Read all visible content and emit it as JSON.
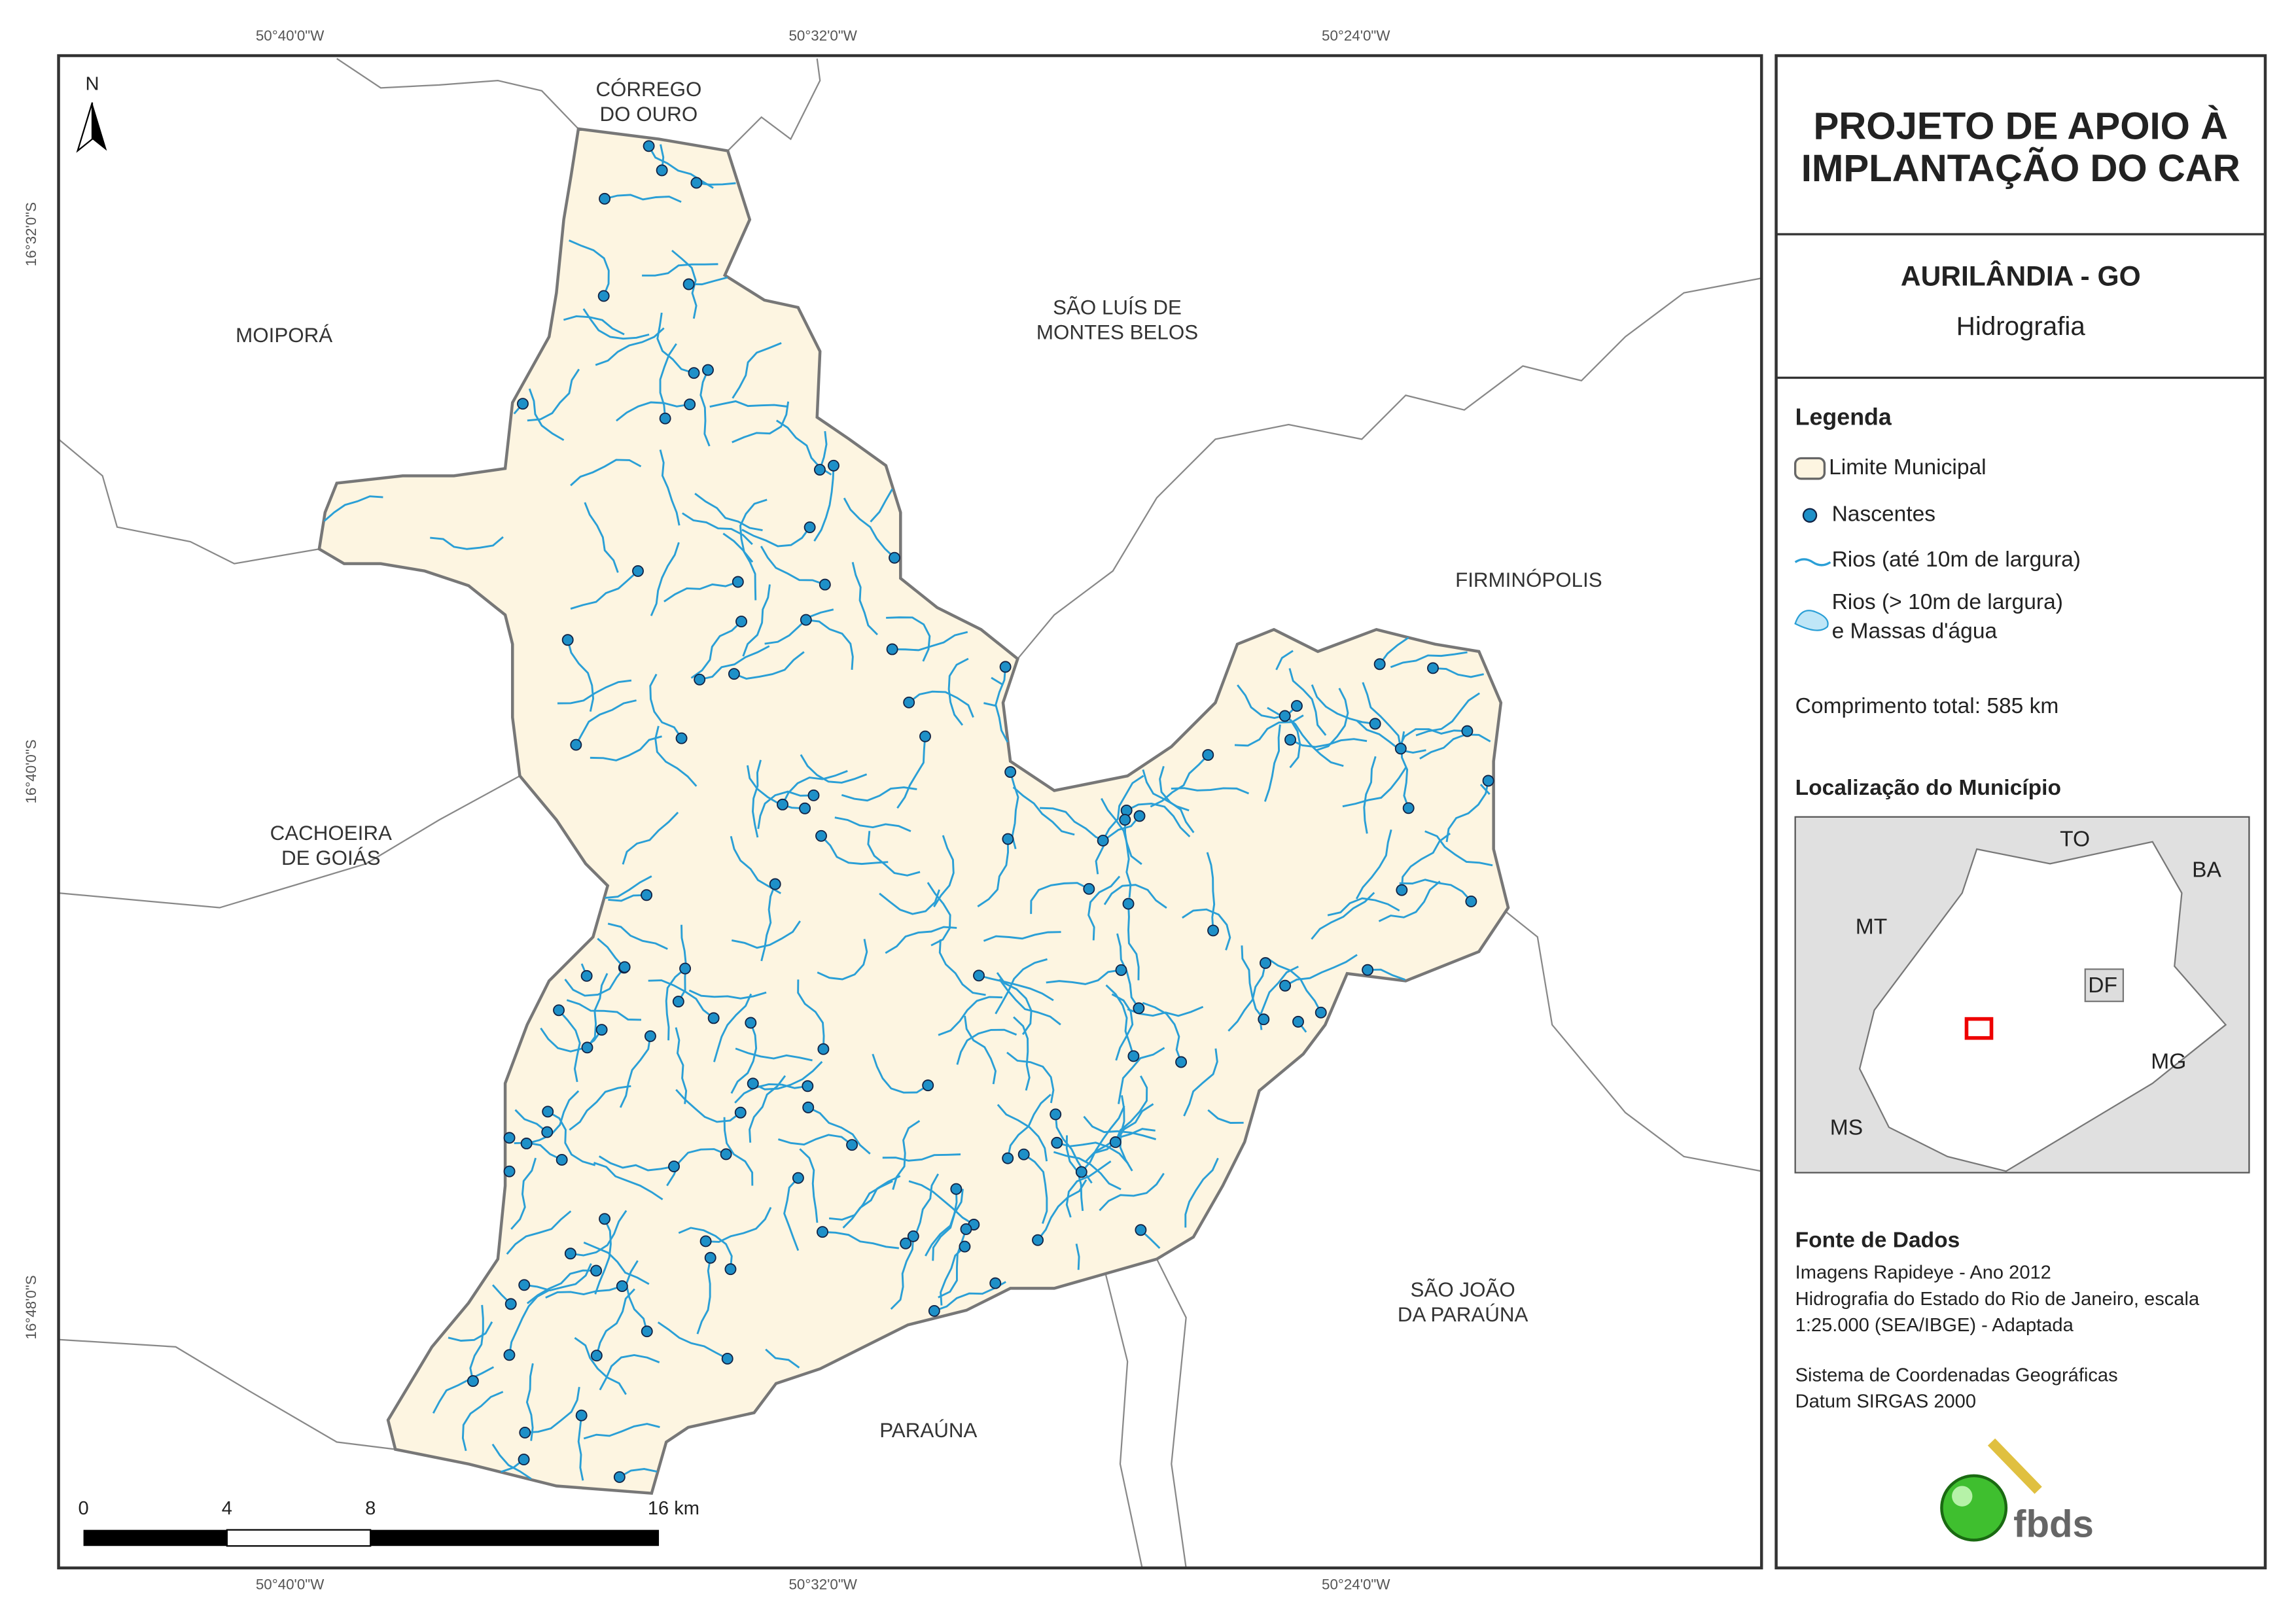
{
  "map": {
    "coordinates": {
      "top": [
        "50°40'0\"W",
        "50°32'0\"W",
        "50°24'0\"W"
      ],
      "bottom": [
        "50°40'0\"W",
        "50°32'0\"W",
        "50°24'0\"W"
      ],
      "left": [
        "16°32'0\"S",
        "16°40'0\"S",
        "16°48'0\"S"
      ]
    },
    "north": "N",
    "neighbors": [
      [
        "CÓRREGO",
        "DO OURO"
      ],
      [
        "MOIPORÁ"
      ],
      [
        "SÃO LUÍS DE",
        "MONTES BELOS"
      ],
      [
        "FIRMINÓPOLIS"
      ],
      [
        "CACHOEIRA",
        "DE GOIÁS"
      ],
      [
        "SÃO JOÃO",
        "DA PARAÚNA"
      ],
      [
        "PARAÚNA"
      ]
    ],
    "scale_bar": [
      "0",
      "4",
      "8",
      "16 km"
    ]
  },
  "panel": {
    "title": [
      "PROJETO DE APOIO À",
      "IMPLANTAÇÃO DO CAR"
    ],
    "municipality": "AURILÂNDIA - GO",
    "theme": "Hidrografia",
    "legend": {
      "title": "Legenda",
      "items": [
        [
          "Limite Municipal"
        ],
        [
          "Nascentes"
        ],
        [
          "Rios (até 10m de largura)"
        ],
        [
          "Rios (> 10m de largura)",
          "e Massas d'água"
        ]
      ]
    },
    "total_length": "Comprimento total:  585 km",
    "location": {
      "title": "Localização do Município",
      "labels": [
        "TO",
        "BA",
        "MT",
        "DF",
        "MG",
        "MS"
      ]
    },
    "sources": {
      "title": "Fonte de Dados",
      "lines": [
        "Imagens Rapideye - Ano 2012",
        "Hidrografia do Estado do Rio de Janeiro, escala",
        "1:25.000 (SEA/IBGE) - Adaptada",
        "Sistema de Coordenadas Geográficas",
        "Datum SIRGAS 2000"
      ]
    },
    "logo": "fbds"
  }
}
